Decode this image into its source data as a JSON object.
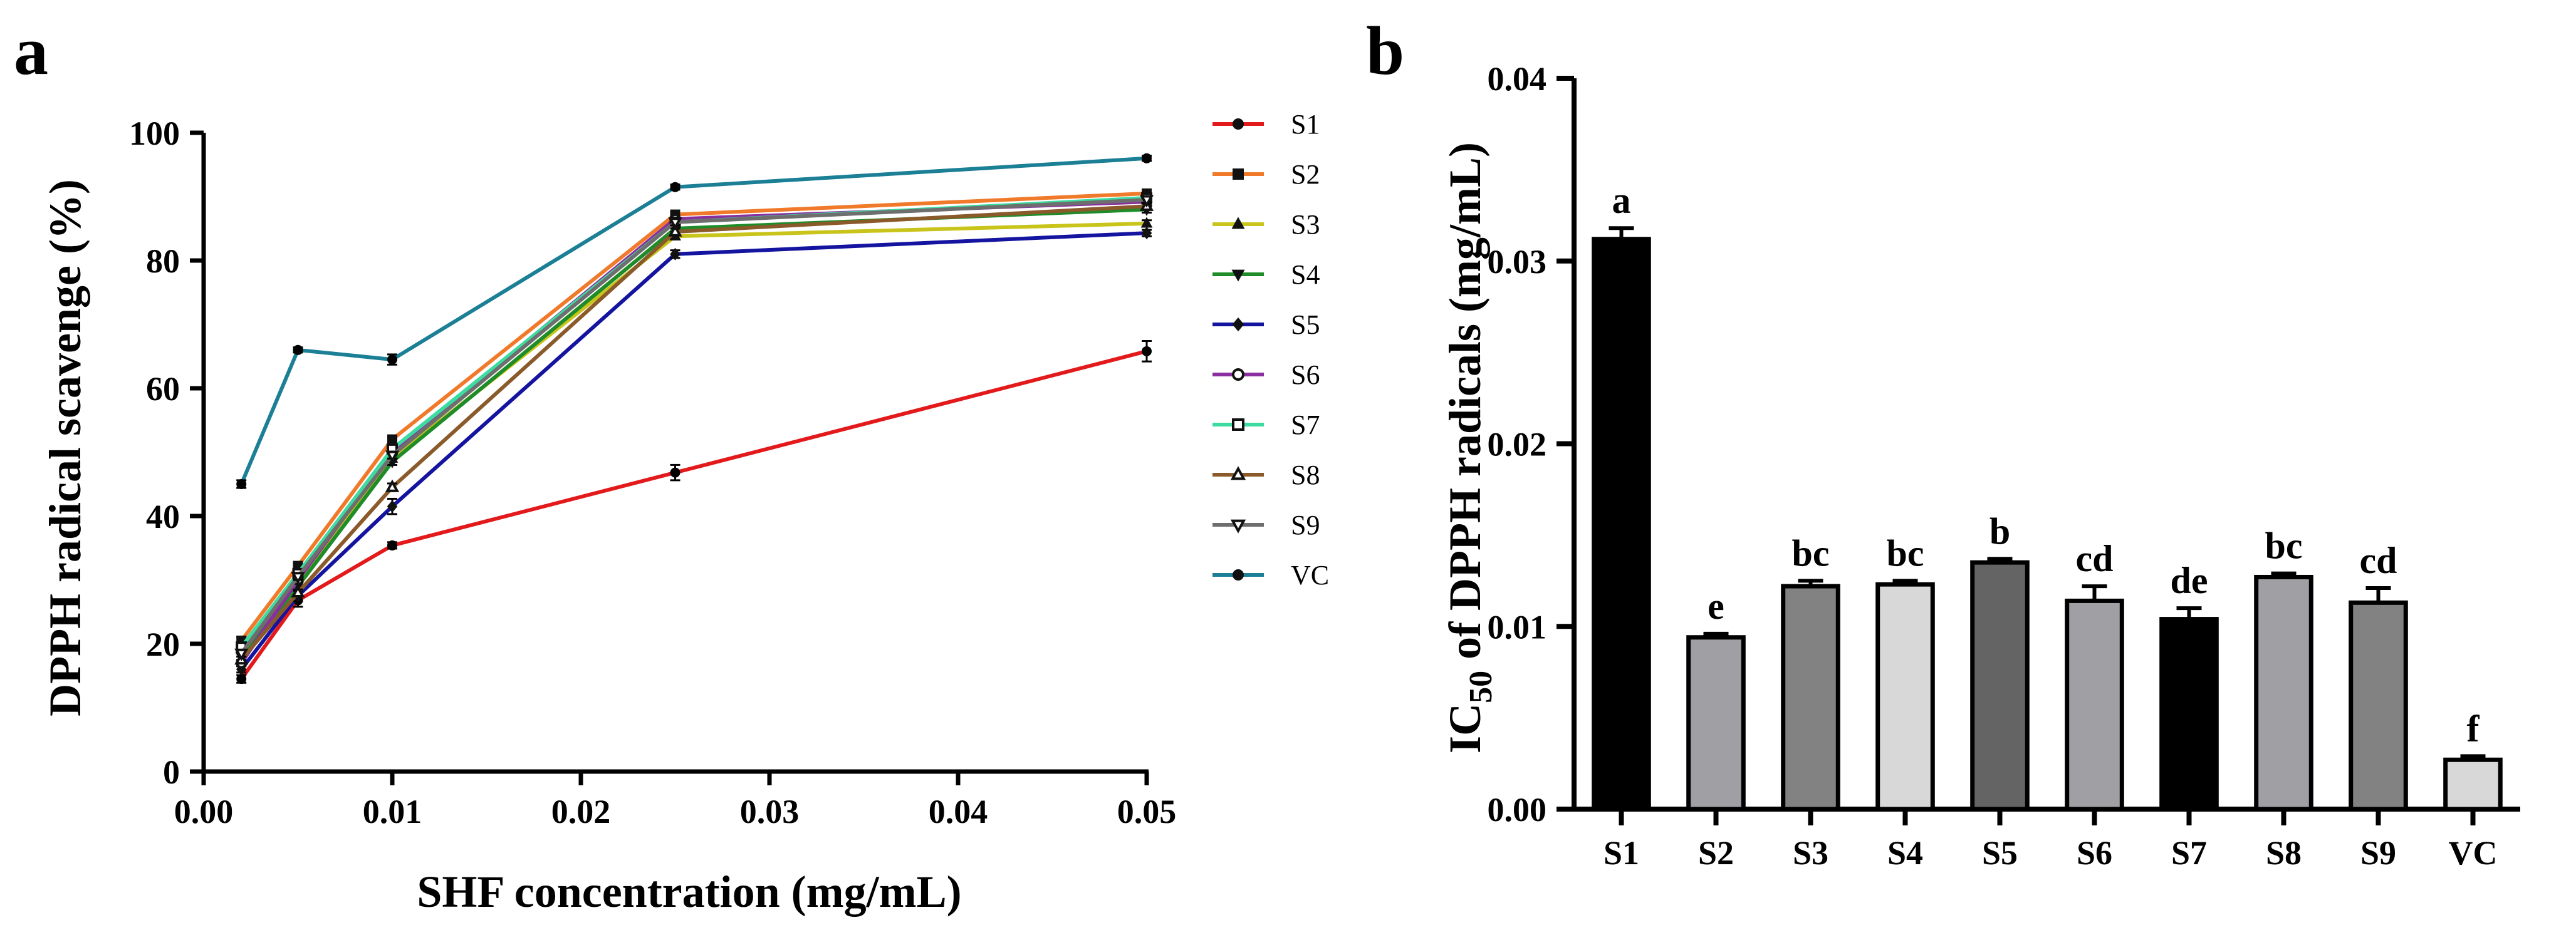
{
  "colors": {
    "background": "#ffffff",
    "axis": "#000000"
  },
  "chart_data": [
    {
      "panel": "a",
      "type": "line",
      "xlabel": "SHF concentration (mg/mL)",
      "ylabel": "DPPH radical scavenge (%)",
      "xlim": [
        0,
        0.05
      ],
      "ylim": [
        0,
        100
      ],
      "xticks": [
        0,
        0.01,
        0.02,
        0.03,
        0.04,
        0.05
      ],
      "xtick_labels": [
        "0.00",
        "0.01",
        "0.02",
        "0.03",
        "0.04",
        "0.05"
      ],
      "yticks": [
        0,
        20,
        40,
        60,
        80,
        100
      ],
      "ytick_labels": [
        "0",
        "20",
        "40",
        "60",
        "80",
        "100"
      ],
      "legend_position": "right",
      "x": [
        0.002,
        0.005,
        0.01,
        0.025,
        0.05
      ],
      "series": [
        {
          "name": "S1",
          "color": "#e31a1c",
          "marker": "circle",
          "values": [
            14.5,
            26.8,
            35.4,
            46.8,
            65.8
          ],
          "errors": [
            0.6,
            1.0,
            0.5,
            1.2,
            1.6
          ]
        },
        {
          "name": "S2",
          "color": "#f07a2a",
          "marker": "square",
          "values": [
            20.5,
            32.2,
            52.0,
            87.2,
            90.5
          ],
          "errors": [
            0.6,
            0.6,
            0.6,
            0.6,
            0.6
          ]
        },
        {
          "name": "S3",
          "color": "#c8c41a",
          "marker": "triangle-up",
          "values": [
            19.0,
            29.5,
            49.0,
            83.8,
            85.8
          ],
          "errors": [
            0.5,
            0.5,
            0.5,
            0.5,
            0.5
          ]
        },
        {
          "name": "S4",
          "color": "#1e8c28",
          "marker": "triangle-down",
          "values": [
            18.0,
            29.0,
            48.5,
            85.0,
            88.0
          ],
          "errors": [
            0.5,
            0.5,
            0.5,
            0.5,
            0.5
          ]
        },
        {
          "name": "S5",
          "color": "#1414a0",
          "marker": "diamond",
          "values": [
            16.0,
            27.5,
            41.5,
            81.0,
            84.3
          ],
          "errors": [
            0.5,
            0.8,
            1.2,
            0.6,
            0.5
          ]
        },
        {
          "name": "S6",
          "color": "#8a2fa0",
          "marker": "circle-open",
          "values": [
            17.0,
            30.0,
            50.0,
            86.5,
            89.2
          ],
          "errors": [
            0.5,
            0.5,
            0.5,
            0.5,
            0.5
          ]
        },
        {
          "name": "S7",
          "color": "#3cdca0",
          "marker": "square-open",
          "values": [
            19.5,
            31.0,
            50.5,
            86.0,
            89.8
          ],
          "errors": [
            0.5,
            0.5,
            0.5,
            0.5,
            0.5
          ]
        },
        {
          "name": "S8",
          "color": "#8b5a2b",
          "marker": "triangle-up-open",
          "values": [
            17.5,
            28.0,
            44.5,
            84.5,
            88.5
          ],
          "errors": [
            0.5,
            0.5,
            0.6,
            0.5,
            0.5
          ]
        },
        {
          "name": "S9",
          "color": "#6e6e6e",
          "marker": "triangle-down-open",
          "values": [
            18.5,
            30.5,
            49.5,
            86.0,
            89.5
          ],
          "errors": [
            0.5,
            0.5,
            0.5,
            0.5,
            0.5
          ]
        },
        {
          "name": "VC",
          "color": "#1b7f95",
          "marker": "circle",
          "values": [
            45.0,
            66.0,
            64.5,
            91.5,
            96.0
          ],
          "errors": [
            0.6,
            0.4,
            0.8,
            0.4,
            0.4
          ]
        }
      ]
    },
    {
      "panel": "b",
      "type": "bar",
      "xlabel": "",
      "ylabel": "IC50 of DPPH radicals (mg/mL)",
      "ylabel_parts": {
        "prefix": "IC",
        "subscript": "50",
        "suffix": " of DPPH radicals (mg/mL)"
      },
      "ylim": [
        0,
        0.04
      ],
      "yticks": [
        0,
        0.01,
        0.02,
        0.03,
        0.04
      ],
      "ytick_labels": [
        "0.00",
        "0.01",
        "0.02",
        "0.03",
        "0.04"
      ],
      "categories": [
        "S1",
        "S2",
        "S3",
        "S4",
        "S5",
        "S6",
        "S7",
        "S8",
        "S9",
        "VC"
      ],
      "values": [
        0.0312,
        0.0094,
        0.0122,
        0.0123,
        0.0135,
        0.0114,
        0.0104,
        0.0127,
        0.0113,
        0.0027
      ],
      "errors": [
        0.0006,
        0.0002,
        0.0003,
        0.0002,
        0.0002,
        0.0008,
        0.0006,
        0.0002,
        0.0008,
        0.0002
      ],
      "significance": [
        "a",
        "e",
        "bc",
        "bc",
        "b",
        "cd",
        "de",
        "bc",
        "cd",
        "f"
      ],
      "bar_colors": [
        "#000000",
        "#a0a0a4",
        "#828282",
        "#d8d8d8",
        "#646464",
        "#a0a0a4",
        "#000000",
        "#a0a0a4",
        "#828282",
        "#d8d8d8"
      ]
    }
  ]
}
